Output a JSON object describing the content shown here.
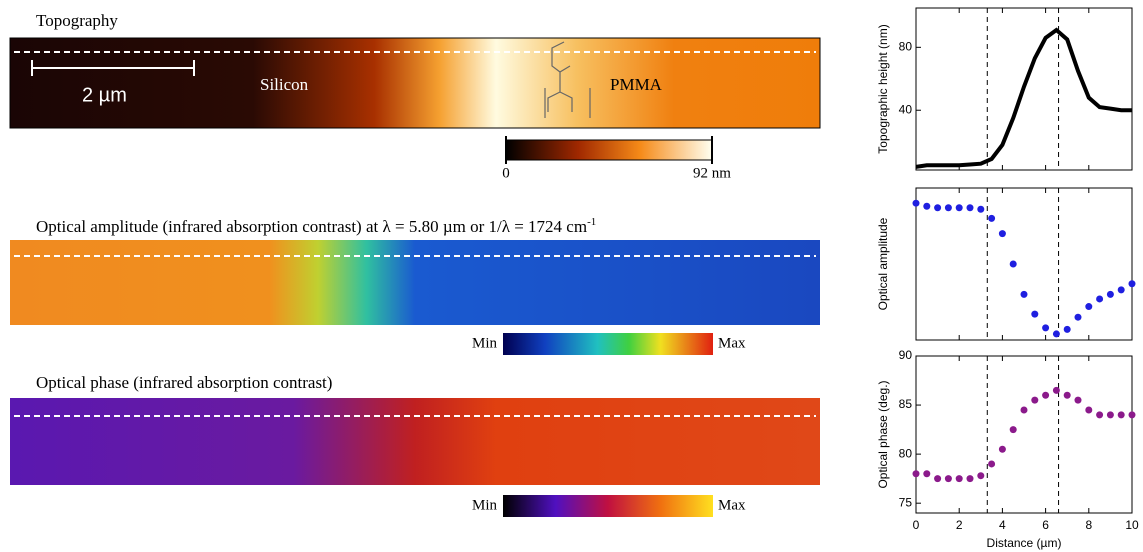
{
  "panels": [
    {
      "title": "Topography",
      "labels": [
        "Silicon",
        "PMMA"
      ],
      "scale_bar": "2 µm",
      "colorbar": {
        "ticks": [
          0,
          {
            "value": 92,
            "label": "92 nm"
          }
        ],
        "lim": [
          0,
          92
        ]
      }
    },
    {
      "title": "Optical amplitude (infrared absorption contrast) at λ = 5.80 µm or 1/λ = 1724 cm",
      "title_sup": "-1",
      "colorbar": {
        "min_label": "Min",
        "max_label": "Max"
      }
    },
    {
      "title": "Optical phase (infrared absorption contrast)",
      "colorbar": {
        "min_label": "Min",
        "max_label": "Max"
      }
    }
  ],
  "chart_data": [
    {
      "type": "line",
      "ylabel": "Topographic height (nm)",
      "color": "#000000",
      "x": [
        0,
        0.5,
        1,
        1.5,
        2,
        2.5,
        3,
        3.5,
        4,
        4.5,
        5,
        5.5,
        6,
        6.5,
        7,
        7.5,
        8,
        8.5,
        9,
        9.5,
        10
      ],
      "values": [
        4,
        5,
        5,
        5,
        5,
        5.5,
        6,
        9,
        18,
        35,
        55,
        73,
        86,
        91,
        85,
        65,
        48,
        42,
        41,
        40,
        40
      ],
      "xlim": [
        0,
        10
      ],
      "xticks": [
        0,
        2,
        4,
        6,
        8,
        10
      ],
      "ylim": [
        2,
        105
      ],
      "yticks": [
        40,
        80
      ],
      "vlines": [
        3.3,
        6.6
      ]
    },
    {
      "type": "scatter",
      "ylabel": "Optical amplitude",
      "color": "#1f1fe0",
      "x": [
        0,
        0.5,
        1,
        1.5,
        2,
        2.5,
        3,
        3.5,
        4,
        4.5,
        5,
        5.5,
        6,
        6.5,
        7,
        7.5,
        8,
        8.5,
        9,
        9.5,
        10
      ],
      "values": [
        0.9,
        0.88,
        0.87,
        0.87,
        0.87,
        0.87,
        0.86,
        0.8,
        0.7,
        0.5,
        0.3,
        0.17,
        0.08,
        0.04,
        0.07,
        0.15,
        0.22,
        0.27,
        0.3,
        0.33,
        0.37
      ],
      "xlim": [
        0,
        10
      ],
      "xticks": [
        0,
        2,
        4,
        6,
        8,
        10
      ],
      "ylim": [
        0,
        1
      ],
      "vlines": [
        3.3,
        6.6
      ]
    },
    {
      "type": "scatter",
      "ylabel": "Optical phase (deg.)",
      "xlabel": "Distance (µm)",
      "color": "#8b1a8b",
      "x": [
        0,
        0.5,
        1,
        1.5,
        2,
        2.5,
        3,
        3.5,
        4,
        4.5,
        5,
        5.5,
        6,
        6.5,
        7,
        7.5,
        8,
        8.5,
        9,
        9.5,
        10
      ],
      "values": [
        78,
        78,
        77.5,
        77.5,
        77.5,
        77.5,
        77.8,
        79,
        80.5,
        82.5,
        84.5,
        85.5,
        86,
        86.5,
        86,
        85.5,
        84.5,
        84,
        84,
        84,
        84
      ],
      "xlim": [
        0,
        10
      ],
      "xticks": [
        0,
        2,
        4,
        6,
        8,
        10
      ],
      "ylim": [
        74,
        90
      ],
      "yticks": [
        75,
        80,
        85,
        90
      ],
      "vlines": [
        3.3,
        6.6
      ]
    }
  ]
}
